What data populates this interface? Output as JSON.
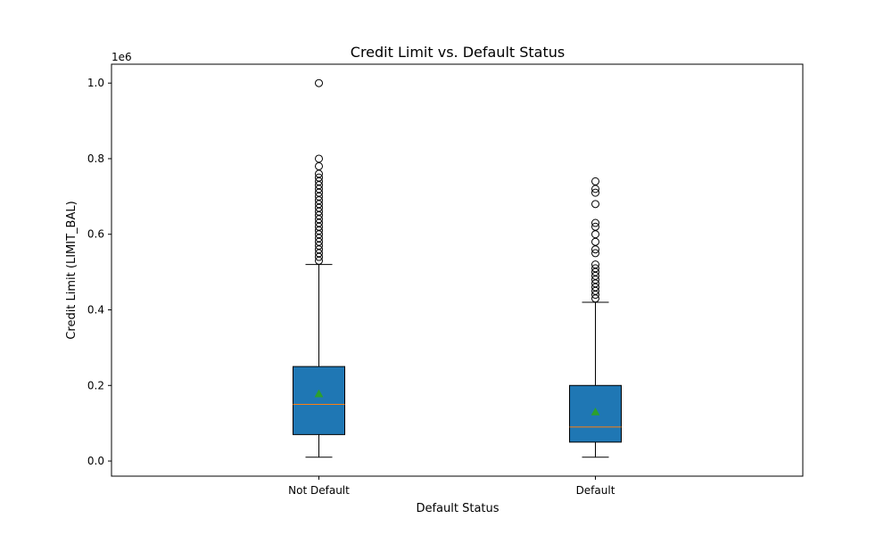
{
  "chart_data": {
    "type": "boxplot",
    "title": "Credit Limit vs. Default Status",
    "xlabel": "Default Status",
    "ylabel": "Credit Limit (LIMIT_BAL)",
    "y_offset_label": "1e6",
    "y_scale": 1000000,
    "ylim": [
      -40000,
      1050000
    ],
    "yticks": [
      0,
      200000,
      400000,
      600000,
      800000,
      1000000
    ],
    "ytick_labels": [
      "0.0",
      "0.2",
      "0.4",
      "0.6",
      "0.8",
      "1.0"
    ],
    "grid": false,
    "colors": {
      "box_fill": "#1f77b4",
      "median": "#ff7f0e",
      "mean": "#2ca02c",
      "whisker": "#000000"
    },
    "categories": [
      "Not Default",
      "Default"
    ],
    "boxes": [
      {
        "category": "Not Default",
        "whisker_low": 10000,
        "q1": 70000,
        "median": 150000,
        "q3": 250000,
        "whisker_high": 520000,
        "mean": 178000,
        "outliers": [
          530000,
          540000,
          550000,
          560000,
          570000,
          580000,
          590000,
          600000,
          610000,
          620000,
          630000,
          640000,
          650000,
          660000,
          670000,
          680000,
          690000,
          700000,
          710000,
          720000,
          730000,
          740000,
          750000,
          760000,
          780000,
          800000,
          1000000
        ]
      },
      {
        "category": "Default",
        "whisker_low": 10000,
        "q1": 50000,
        "median": 90000,
        "q3": 200000,
        "whisker_high": 420000,
        "mean": 130000,
        "outliers": [
          430000,
          440000,
          450000,
          460000,
          470000,
          480000,
          490000,
          500000,
          510000,
          520000,
          550000,
          560000,
          580000,
          600000,
          620000,
          630000,
          680000,
          710000,
          720000,
          740000
        ]
      }
    ]
  }
}
